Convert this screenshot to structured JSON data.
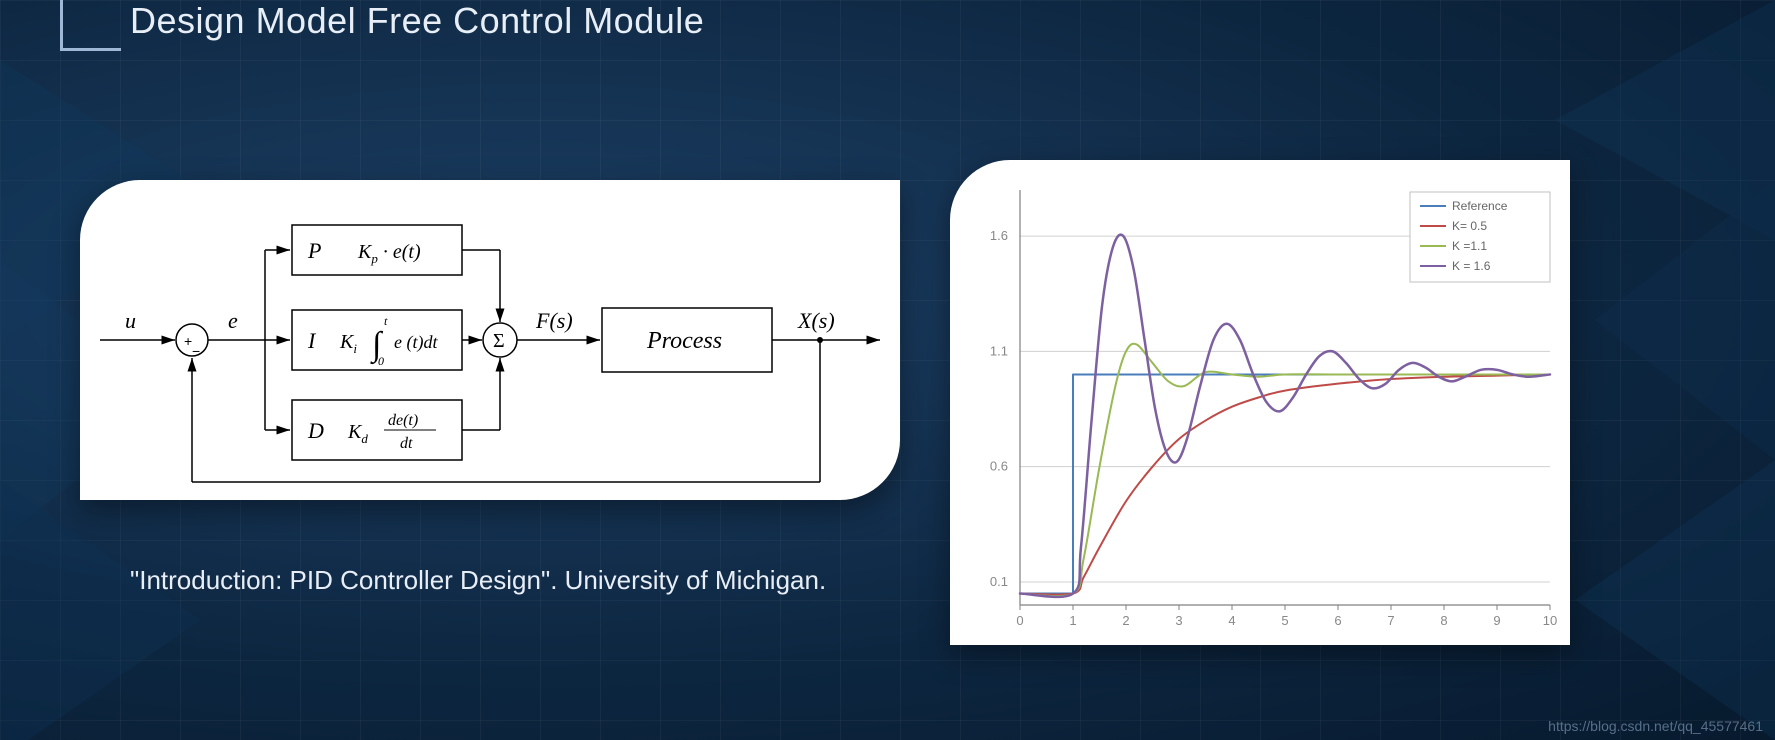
{
  "title": "Design Model Free Control Module",
  "caption": "\"Introduction: PID Controller Design\". University of Michigan.",
  "watermark": "https://blog.csdn.net/qq_45577461",
  "colors": {
    "bg_grad_inner": "#1d4066",
    "bg_grad_outer": "#071a2e",
    "panel_bg": "#ffffff",
    "title_text": "#e8eef6",
    "bracket": "#9fb8d6",
    "diagram_stroke": "#000000"
  },
  "diagram": {
    "input_label": "u",
    "error_label": "e",
    "sum1_plus": "+",
    "sum1_minus": "−",
    "P_letter": "P",
    "P_expr": "K_p · e(t)",
    "I_letter": "I",
    "I_expr_prefix": "K_i",
    "I_integral_upper": "t",
    "I_integral_lower": "0",
    "I_integral_body": "e (t)dt",
    "D_letter": "D",
    "D_expr_prefix": "K_d",
    "D_frac_num": "de(t)",
    "D_frac_den": "dt",
    "sigma": "Σ",
    "Fs": "F(s)",
    "process": "Process",
    "Xs": "X(s)"
  },
  "chart": {
    "type": "line",
    "plot_bg": "#ffffff",
    "grid_color": "#d0d0d0",
    "axis_color": "#808080",
    "xlim": [
      0,
      10
    ],
    "ylim": [
      0,
      1.8
    ],
    "xticks": [
      0,
      1,
      2,
      3,
      4,
      5,
      6,
      7,
      8,
      9,
      10
    ],
    "yticks": [
      0.1,
      0.6,
      1.1,
      1.6
    ],
    "legend_border": "#c0c0c0",
    "legend": [
      {
        "label": "Reference",
        "color": "#4a7ebb",
        "width": 2
      },
      {
        "label": "K= 0.5",
        "color": "#be4b48",
        "width": 2
      },
      {
        "label": "K =1.1",
        "color": "#98b954",
        "width": 2
      },
      {
        "label": "K = 1.6",
        "color": "#7d60a0",
        "width": 2
      }
    ],
    "series": {
      "reference": {
        "color": "#4a7ebb",
        "width": 2,
        "pts": [
          [
            0,
            0.05
          ],
          [
            1,
            0.05
          ],
          [
            1,
            1.0
          ],
          [
            10,
            1.0
          ]
        ]
      },
      "k05": {
        "color": "#be4b48",
        "width": 2,
        "pts": [
          [
            0,
            0.05
          ],
          [
            1,
            0.05
          ],
          [
            1.2,
            0.12
          ],
          [
            1.5,
            0.25
          ],
          [
            2,
            0.45
          ],
          [
            2.5,
            0.6
          ],
          [
            3,
            0.72
          ],
          [
            3.5,
            0.8
          ],
          [
            4,
            0.86
          ],
          [
            4.5,
            0.9
          ],
          [
            5,
            0.93
          ],
          [
            6,
            0.96
          ],
          [
            7,
            0.98
          ],
          [
            8,
            0.99
          ],
          [
            9,
            0.995
          ],
          [
            10,
            1.0
          ]
        ]
      },
      "k11": {
        "color": "#98b954",
        "width": 2,
        "pts": [
          [
            0,
            0.05
          ],
          [
            1,
            0.05
          ],
          [
            1.2,
            0.2
          ],
          [
            1.5,
            0.6
          ],
          [
            1.8,
            0.95
          ],
          [
            2.0,
            1.1
          ],
          [
            2.2,
            1.13
          ],
          [
            2.5,
            1.05
          ],
          [
            2.8,
            0.97
          ],
          [
            3.1,
            0.95
          ],
          [
            3.5,
            1.01
          ],
          [
            4.0,
            1.0
          ],
          [
            4.5,
            0.99
          ],
          [
            5,
            1.0
          ],
          [
            6,
            1.0
          ],
          [
            7,
            1.0
          ],
          [
            8,
            1.0
          ],
          [
            9,
            1.0
          ],
          [
            10,
            1.0
          ]
        ]
      },
      "k16": {
        "color": "#7d60a0",
        "width": 2.5,
        "pts": [
          [
            0,
            0.05
          ],
          [
            1,
            0.05
          ],
          [
            1.15,
            0.25
          ],
          [
            1.35,
            0.8
          ],
          [
            1.55,
            1.3
          ],
          [
            1.75,
            1.55
          ],
          [
            1.95,
            1.6
          ],
          [
            2.15,
            1.45
          ],
          [
            2.35,
            1.15
          ],
          [
            2.55,
            0.85
          ],
          [
            2.75,
            0.67
          ],
          [
            2.95,
            0.62
          ],
          [
            3.15,
            0.72
          ],
          [
            3.4,
            0.95
          ],
          [
            3.65,
            1.15
          ],
          [
            3.9,
            1.22
          ],
          [
            4.15,
            1.15
          ],
          [
            4.4,
            1.0
          ],
          [
            4.65,
            0.88
          ],
          [
            4.9,
            0.84
          ],
          [
            5.15,
            0.9
          ],
          [
            5.4,
            1.0
          ],
          [
            5.65,
            1.08
          ],
          [
            5.9,
            1.1
          ],
          [
            6.15,
            1.05
          ],
          [
            6.4,
            0.98
          ],
          [
            6.65,
            0.94
          ],
          [
            6.9,
            0.96
          ],
          [
            7.15,
            1.02
          ],
          [
            7.4,
            1.05
          ],
          [
            7.65,
            1.03
          ],
          [
            7.9,
            0.99
          ],
          [
            8.15,
            0.97
          ],
          [
            8.4,
            0.99
          ],
          [
            8.7,
            1.02
          ],
          [
            9.0,
            1.02
          ],
          [
            9.3,
            1.0
          ],
          [
            9.6,
            0.99
          ],
          [
            10,
            1.0
          ]
        ]
      }
    }
  }
}
